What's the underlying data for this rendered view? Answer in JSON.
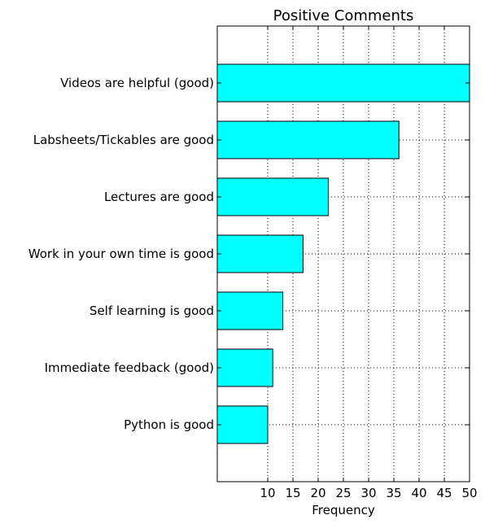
{
  "chart_data": {
    "type": "bar",
    "orientation": "horizontal",
    "title": "Positive Comments",
    "xlabel": "Frequency",
    "ylabel": "",
    "xlim": [
      0,
      50
    ],
    "xticks": [
      10,
      15,
      20,
      25,
      30,
      35,
      40,
      45,
      50
    ],
    "grid": true,
    "bar_color": "#00ffff",
    "categories": [
      "Videos are helpful (good)",
      "Labsheets/Tickables are good",
      "Lectures are good",
      "Work in your own time is good",
      "Self learning is good",
      "Immediate feedback (good)",
      "Python is good"
    ],
    "values": [
      50,
      36,
      22,
      17,
      13,
      11,
      10
    ]
  }
}
